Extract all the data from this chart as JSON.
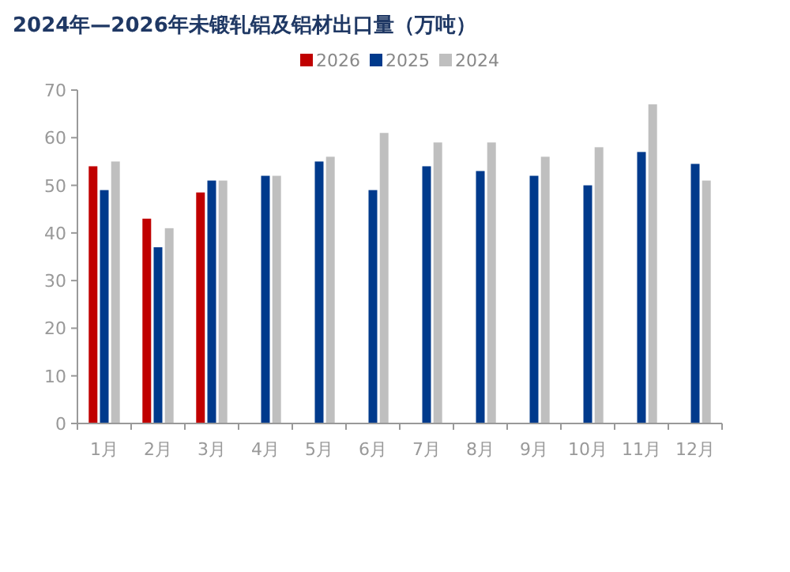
{
  "chart_data": {
    "type": "bar",
    "title": "2024年—2026年未锻轧铝及铝材出口量（万吨）",
    "categories": [
      "1月",
      "2月",
      "3月",
      "4月",
      "5月",
      "6月",
      "7月",
      "8月",
      "9月",
      "10月",
      "11月",
      "12月"
    ],
    "series": [
      {
        "name": "2026",
        "color": "#c00000",
        "values": [
          54,
          43,
          48.5,
          null,
          null,
          null,
          null,
          null,
          null,
          null,
          null,
          null
        ]
      },
      {
        "name": "2025",
        "color": "#003a8c",
        "values": [
          49,
          37,
          51,
          52,
          55,
          49,
          54,
          53,
          52,
          50,
          57,
          54.5
        ]
      },
      {
        "name": "2024",
        "color": "#bfbfbf",
        "values": [
          55,
          41,
          51,
          52,
          56,
          61,
          59,
          59,
          56,
          58,
          67,
          51
        ]
      }
    ],
    "ylim": [
      0,
      70
    ],
    "yticks": [
      0,
      10,
      20,
      30,
      40,
      50,
      60,
      70
    ],
    "grid": false,
    "legend": "top"
  }
}
